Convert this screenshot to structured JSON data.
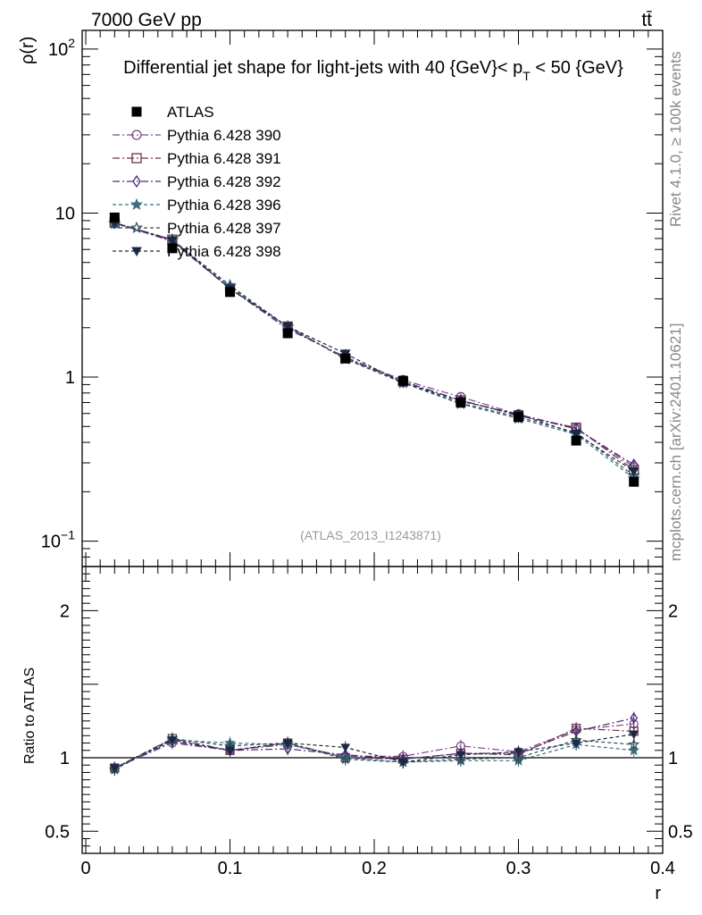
{
  "header": {
    "left": "7000 GeV pp",
    "right": "tt̄"
  },
  "side_labels": {
    "rivet": "Rivet 4.1.0, ≥ 100k events",
    "mcplots": "mcplots.cern.ch [arXiv:2401.10621]"
  },
  "chart_data": {
    "type": "line",
    "title": "Differential jet shape for light-jets with 40 {GeV}< p_T < 50 {GeV}",
    "title_parts": {
      "main": "Differential jet shape for light-jets with 40 {GeV}< p",
      "sub": "T",
      "tail": " < 50 {GeV}"
    },
    "watermark": "(ATLAS_2013_I1243871)",
    "xlabel": "r",
    "ylabel": "ρ(r)",
    "ratio_ylabel": "Ratio to ATLAS",
    "xlim": [
      -0.0025,
      0.4
    ],
    "ylim_log": [
      0.07,
      130
    ],
    "ratio_ylim": [
      0.35,
      2.3
    ],
    "x_ticks": [
      "0",
      "0.1",
      "0.2",
      "0.3",
      "0.4"
    ],
    "x_tick_values": [
      0,
      0.1,
      0.2,
      0.3,
      0.4
    ],
    "y_tick_labels": [
      {
        "value": 0.1,
        "base": "10",
        "exp": "−1"
      },
      {
        "value": 1,
        "base": "1",
        "exp": ""
      },
      {
        "value": 10,
        "base": "10",
        "exp": ""
      },
      {
        "value": 100,
        "base": "10",
        "exp": "2"
      }
    ],
    "ratio_ticks": [
      {
        "value": 0.5,
        "label": "0.5"
      },
      {
        "value": 1,
        "label": "1"
      },
      {
        "value": 2,
        "label": "2"
      }
    ],
    "x": [
      0.02,
      0.06,
      0.1,
      0.14,
      0.18,
      0.22,
      0.26,
      0.3,
      0.34,
      0.38
    ],
    "data": {
      "name": "ATLAS",
      "values": [
        9.4,
        6.1,
        3.3,
        1.85,
        1.3,
        0.95,
        0.7,
        0.57,
        0.41,
        0.23
      ]
    },
    "series": [
      {
        "name": "Pythia 6.428 390",
        "color": "#7b4a8c",
        "marker": "circle-open",
        "dash": "8,3,2,3",
        "ratio": [
          0.93,
          1.1,
          1.05,
          1.09,
          1.01,
          1.01,
          1.08,
          1.04,
          1.19,
          1.23
        ]
      },
      {
        "name": "Pythia 6.428 391",
        "color": "#6b3448",
        "marker": "square-open",
        "dash": "8,3,2,3",
        "ratio": [
          0.93,
          1.13,
          1.05,
          1.1,
          1.0,
          0.99,
          1.03,
          1.02,
          1.2,
          1.18
        ]
      },
      {
        "name": "Pythia 6.428 392",
        "color": "#4e2a78",
        "marker": "diamond-open",
        "dash": "8,3,2,3",
        "ratio": [
          0.93,
          1.11,
          1.05,
          1.06,
          1.02,
          0.99,
          1.03,
          1.03,
          1.18,
          1.27
        ]
      },
      {
        "name": "Pythia 6.428 396",
        "color": "#3e6e80",
        "marker": "star-filled",
        "dash": "4,3",
        "ratio": [
          0.92,
          1.12,
          1.1,
          1.09,
          1.0,
          0.97,
          0.98,
          0.98,
          1.09,
          1.05
        ]
      },
      {
        "name": "Pythia 6.428 397",
        "color": "#2e4e58",
        "marker": "star-open",
        "dash": "4,3",
        "ratio": [
          0.92,
          1.13,
          1.08,
          1.1,
          0.99,
          0.97,
          0.99,
          1.0,
          1.12,
          1.09
        ]
      },
      {
        "name": "Pythia 6.428 398",
        "color": "#1b2846",
        "marker": "triangle-down-filled",
        "dash": "4,3",
        "ratio": [
          0.93,
          1.12,
          1.05,
          1.1,
          1.07,
          0.97,
          1.02,
          1.04,
          1.1,
          1.16
        ]
      }
    ]
  }
}
